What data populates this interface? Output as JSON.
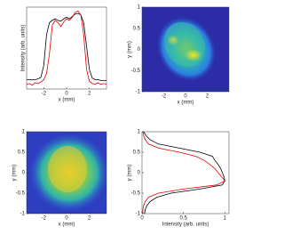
{
  "chart_data": [
    {
      "type": "line",
      "xlabel": "x (mm)",
      "ylabel": "Intensity (arb. units)",
      "xlim": [
        -3.5,
        3.5
      ],
      "xticks": [
        -2,
        0,
        2
      ],
      "ylim": [
        0,
        1.05
      ],
      "x": [
        -3.5,
        -3.25,
        -3,
        -2.75,
        -2.5,
        -2.25,
        -2,
        -1.75,
        -1.5,
        -1.25,
        -1,
        -0.75,
        -0.5,
        -0.25,
        0,
        0.25,
        0.5,
        0.75,
        1,
        1.25,
        1.5,
        1.75,
        2,
        2.25,
        2.5,
        2.75,
        3,
        3.25,
        3.5
      ],
      "series": [
        {
          "color": "#000000",
          "values": [
            0.12,
            0.12,
            0.12,
            0.12,
            0.13,
            0.15,
            0.3,
            0.7,
            0.85,
            0.88,
            0.9,
            0.88,
            0.87,
            0.9,
            0.92,
            0.9,
            0.93,
            0.96,
            0.97,
            0.95,
            0.85,
            0.55,
            0.25,
            0.14,
            0.12,
            0.12,
            0.11,
            0.11,
            0.11
          ]
        },
        {
          "color": "#e00000",
          "values": [
            0.06,
            0.07,
            0.05,
            0.08,
            0.07,
            0.09,
            0.12,
            0.2,
            0.45,
            0.82,
            0.88,
            0.85,
            0.8,
            0.86,
            0.9,
            0.88,
            0.92,
            0.98,
            1.0,
            0.95,
            0.7,
            0.25,
            0.1,
            0.07,
            0.06,
            0.08,
            0.06,
            0.07,
            0.06
          ]
        }
      ]
    },
    {
      "type": "image",
      "xlabel": "x (mm)",
      "ylabel": "y (mm)",
      "xlim": [
        -4,
        4
      ],
      "xticks": [
        -2,
        0,
        2
      ],
      "ylim": [
        -1,
        1
      ],
      "yticks": [
        -1,
        -0.5,
        0,
        0.5,
        1
      ]
    },
    {
      "type": "image",
      "xlabel": "x (mm)",
      "ylabel": "y (mm)",
      "xlim": [
        -3.5,
        3.5
      ],
      "xticks": [
        -2,
        0,
        2
      ],
      "ylim": [
        -1,
        1
      ],
      "yticks": [
        -1,
        -0.5,
        0,
        0.5,
        1
      ]
    },
    {
      "type": "line",
      "xlabel": "Intensity (arb. units)",
      "ylabel": "y (mm)",
      "xlim": [
        0,
        1.05
      ],
      "xticks": [
        0,
        0.5,
        1
      ],
      "ylim": [
        -1,
        1
      ],
      "yticks": [
        -1,
        -0.5,
        0,
        0.5,
        1
      ],
      "y": [
        1,
        0.9,
        0.8,
        0.7,
        0.6,
        0.5,
        0.4,
        0.3,
        0.2,
        0.1,
        0,
        -0.1,
        -0.2,
        -0.3,
        -0.4,
        -0.5,
        -0.6,
        -0.7,
        -0.8,
        -0.9,
        -1
      ],
      "series": [
        {
          "color": "#000000",
          "values": [
            0.02,
            0.05,
            0.1,
            0.2,
            0.45,
            0.7,
            0.85,
            0.88,
            0.92,
            0.95,
            0.97,
            0.99,
            1.0,
            0.97,
            0.7,
            0.35,
            0.18,
            0.1,
            0.06,
            0.04,
            0.03
          ]
        },
        {
          "color": "#e00000",
          "values": [
            0.01,
            0.02,
            0.04,
            0.08,
            0.2,
            0.45,
            0.65,
            0.75,
            0.82,
            0.88,
            0.92,
            0.96,
            1.0,
            0.9,
            0.5,
            0.2,
            0.08,
            0.04,
            0.02,
            0.01,
            0.01
          ]
        }
      ]
    }
  ]
}
